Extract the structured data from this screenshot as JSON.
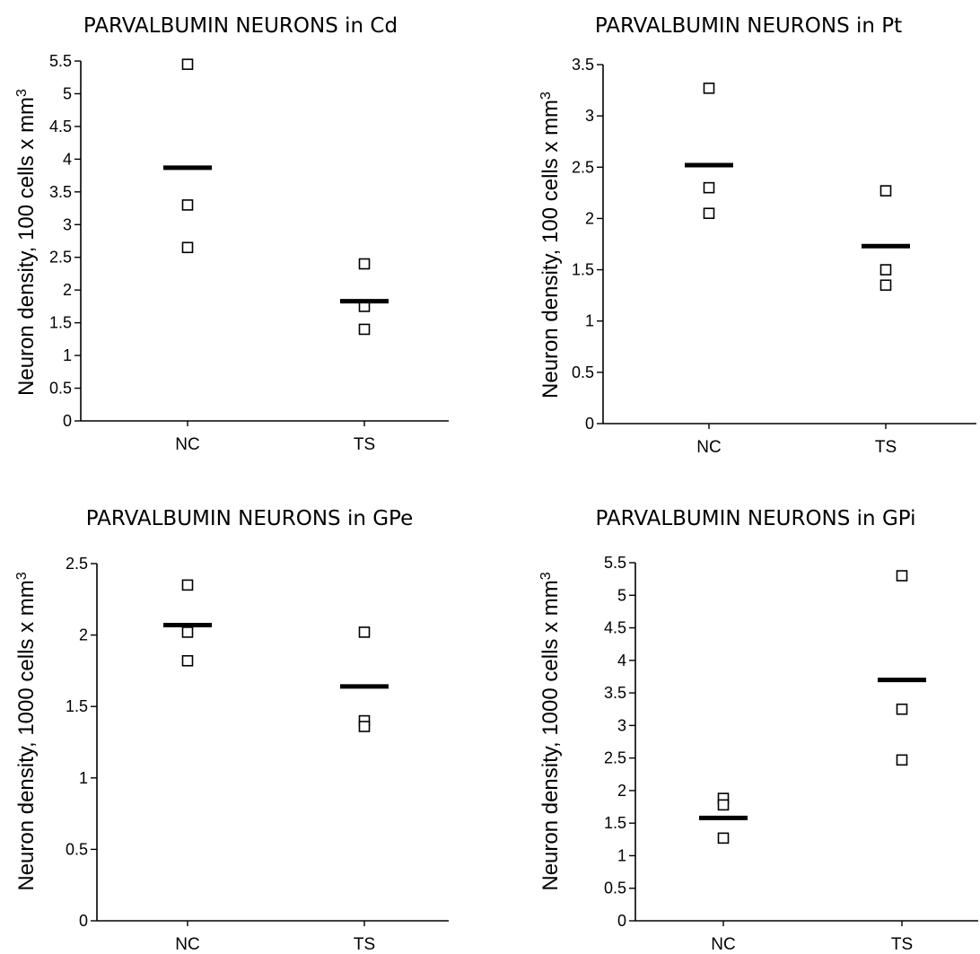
{
  "chart_data": [
    {
      "type": "scatter",
      "title": "PARVALBUMIN NEURONS in Cd",
      "ylabel": "Neuron density, 100 cells x mm3",
      "ylim": [
        0,
        5.5
      ],
      "yticks": [
        0,
        0.5,
        1,
        1.5,
        2,
        2.5,
        3,
        3.5,
        4,
        4.5,
        5,
        5.5
      ],
      "ytick_labels": [
        "0",
        "0.5",
        "1",
        "1.5",
        "2",
        "2.5",
        "3",
        "3.5",
        "4",
        "4.5",
        "5",
        "5.5"
      ],
      "categories": [
        "NC",
        "TS"
      ],
      "points": [
        [
          5.45,
          3.3,
          2.65
        ],
        [
          2.4,
          1.75,
          1.4
        ]
      ],
      "means": [
        3.87,
        1.83
      ],
      "grid": false
    },
    {
      "type": "scatter",
      "title": "PARVALBUMIN NEURONS in Pt",
      "ylabel": "Neuron density, 100 cells x mm3",
      "ylim": [
        0,
        3.5
      ],
      "yticks": [
        0,
        0.5,
        1,
        1.5,
        2,
        2.5,
        3,
        3.5
      ],
      "ytick_labels": [
        "0",
        "0.5",
        "1",
        "1.5",
        "2",
        "2.5",
        "3",
        "3.5"
      ],
      "categories": [
        "NC",
        "TS"
      ],
      "points": [
        [
          3.27,
          2.3,
          2.05
        ],
        [
          2.27,
          1.5,
          1.35
        ]
      ],
      "means": [
        2.52,
        1.73
      ],
      "grid": false
    },
    {
      "type": "scatter",
      "title": "PARVALBUMIN NEURONS in GPe",
      "ylabel": "Neuron density, 1000 cells x mm3",
      "ylim": [
        0,
        2.5
      ],
      "yticks": [
        0,
        0.5,
        1,
        1.5,
        2,
        2.5
      ],
      "ytick_labels": [
        "0",
        "0.5",
        "1",
        "1.5",
        "2",
        "2.5"
      ],
      "categories": [
        "NC",
        "TS"
      ],
      "points": [
        [
          2.35,
          2.02,
          1.82
        ],
        [
          2.02,
          1.4,
          1.36
        ]
      ],
      "means": [
        2.07,
        1.64
      ],
      "grid": false
    },
    {
      "type": "scatter",
      "title": "PARVALBUMIN NEURONS in GPi",
      "ylabel": "Neuron density, 1000 cells x mm3",
      "ylim": [
        0,
        5.5
      ],
      "yticks": [
        0,
        0.5,
        1,
        1.5,
        2,
        2.5,
        3,
        3.5,
        4,
        4.5,
        5,
        5.5
      ],
      "ytick_labels": [
        "0",
        "0.5",
        "1",
        "1.5",
        "2",
        "2.5",
        "3",
        "3.5",
        "4",
        "4.5",
        "5",
        "5.5"
      ],
      "categories": [
        "NC",
        "TS"
      ],
      "points": [
        [
          1.88,
          1.78,
          1.27
        ],
        [
          5.3,
          3.25,
          2.47
        ]
      ],
      "means": [
        1.58,
        3.7
      ],
      "grid": false
    }
  ]
}
